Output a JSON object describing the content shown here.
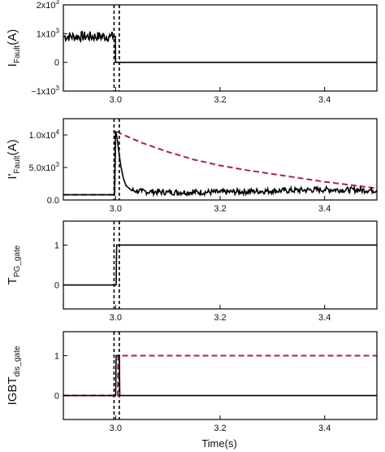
{
  "figure": {
    "xlabel": "Time(s)",
    "x_tick_labels": [
      "3.0",
      "3.2",
      "3.4"
    ],
    "colors": {
      "measured": "#000000",
      "reference": "#b0223a",
      "marker": "#000000"
    }
  },
  "chart_data": [
    {
      "type": "line",
      "ylabel_main": "I",
      "ylabel_sub": "Fault",
      "ylabel_unit": "(A)",
      "xlim": [
        2.9,
        3.5
      ],
      "ylim": [
        -1000,
        2000
      ],
      "yticks": [
        {
          "value": 2000,
          "mant": "2x10",
          "exp": "3"
        },
        {
          "value": 1000,
          "mant": "1x10",
          "exp": "3"
        },
        {
          "value": 0,
          "mant": "0",
          "exp": ""
        },
        {
          "value": -1000,
          "mant": "−1x10",
          "exp": "3"
        }
      ],
      "xticks": [
        3.0,
        3.2,
        3.4
      ],
      "markers": [
        2.997,
        3.007
      ],
      "series": [
        {
          "style": "solid",
          "color": "#000000",
          "x": [
            2.9,
            2.99,
            2.9995,
            3.0,
            3.5
          ],
          "y": [
            900,
            900,
            900,
            0,
            0
          ],
          "noise": 180,
          "noise_range": [
            2.9,
            2.9995
          ]
        }
      ]
    },
    {
      "type": "line",
      "ylabel_main": "I'",
      "ylabel_sub": "Fault",
      "ylabel_unit": "(A)",
      "xlim": [
        2.9,
        3.5
      ],
      "ylim": [
        0,
        12500
      ],
      "yticks": [
        {
          "value": 10000,
          "mant": "1.0x10",
          "exp": "4"
        },
        {
          "value": 5000,
          "mant": "5.0x10",
          "exp": "3"
        },
        {
          "value": 0,
          "mant": "0.0",
          "exp": ""
        }
      ],
      "xticks": [
        3.0,
        3.2,
        3.4
      ],
      "markers": [
        2.997,
        3.007
      ],
      "series": [
        {
          "style": "dashed",
          "color": "#b0223a",
          "x": [
            2.9,
            2.998,
            3.0,
            3.01,
            3.05,
            3.1,
            3.15,
            3.2,
            3.25,
            3.3,
            3.35,
            3.4,
            3.45,
            3.5
          ],
          "y": [
            800,
            800,
            10600,
            10200,
            8800,
            7400,
            6200,
            5300,
            4600,
            4000,
            3400,
            2800,
            2300,
            1800
          ],
          "noise": 0
        },
        {
          "style": "solid",
          "color": "#000000",
          "x": [
            2.9,
            2.998,
            3.0,
            3.003,
            3.006,
            3.01,
            3.015,
            3.02,
            3.03,
            3.05,
            3.1,
            3.2,
            3.3,
            3.4,
            3.5
          ],
          "y": [
            800,
            800,
            10600,
            9500,
            7500,
            5200,
            3300,
            2200,
            1500,
            1300,
            1200,
            1200,
            1400,
            1600,
            1500
          ],
          "noise": 450,
          "noise_range": [
            3.03,
            3.5
          ]
        }
      ]
    },
    {
      "type": "line",
      "ylabel_main": "T",
      "ylabel_sub": "PG_gate",
      "ylabel_unit": "",
      "xlim": [
        2.9,
        3.5
      ],
      "ylim": [
        -0.6,
        1.6
      ],
      "yticks": [
        {
          "value": 1,
          "mant": "1",
          "exp": ""
        },
        {
          "value": 0,
          "mant": "0",
          "exp": ""
        }
      ],
      "xticks": [
        3.0,
        3.2,
        3.4
      ],
      "markers": [
        2.997,
        3.007
      ],
      "series": [
        {
          "style": "solid",
          "color": "#000000",
          "x": [
            2.9,
            3.001,
            3.002,
            3.5
          ],
          "y": [
            0,
            0,
            1,
            1
          ],
          "noise": 0
        }
      ]
    },
    {
      "type": "line",
      "ylabel_main": "IGBT",
      "ylabel_sub": "dis_gate",
      "ylabel_unit": "",
      "xlim": [
        2.9,
        3.5
      ],
      "ylim": [
        -0.6,
        1.6
      ],
      "yticks": [
        {
          "value": 1,
          "mant": "1",
          "exp": ""
        },
        {
          "value": 0,
          "mant": "0",
          "exp": ""
        }
      ],
      "xticks": [
        3.0,
        3.2,
        3.4
      ],
      "markers": [
        2.997,
        3.007
      ],
      "series": [
        {
          "style": "dashed",
          "color": "#b0223a",
          "x": [
            2.9,
            3.004,
            3.005,
            3.5
          ],
          "y": [
            0,
            0,
            1,
            1
          ],
          "noise": 0
        },
        {
          "style": "solid",
          "color": "#000000",
          "x": [
            2.9,
            3.0,
            3.001,
            3.007,
            3.008,
            3.5
          ],
          "y": [
            0,
            0,
            1,
            1,
            0,
            0
          ],
          "noise": 0
        }
      ]
    }
  ]
}
